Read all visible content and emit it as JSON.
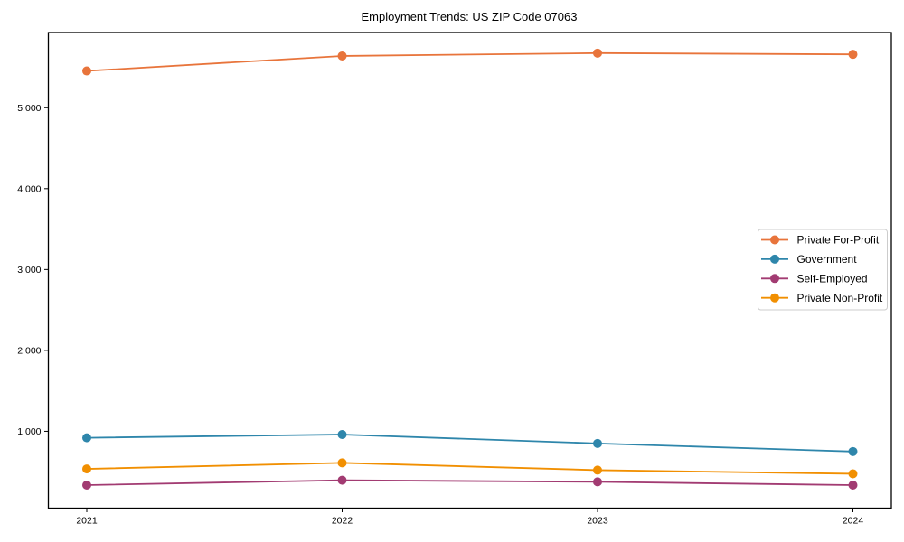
{
  "chart_data": {
    "type": "line",
    "title": "Employment Trends: US ZIP Code 07063",
    "x_categories": [
      "2021",
      "2022",
      "2023",
      "2024"
    ],
    "series": [
      {
        "name": "Private For-Profit",
        "color": "#E8743B",
        "values": [
          5455,
          5640,
          5675,
          5660
        ]
      },
      {
        "name": "Government",
        "color": "#2E86AB",
        "values": [
          920,
          960,
          850,
          750
        ]
      },
      {
        "name": "Self-Employed",
        "color": "#A23B72",
        "values": [
          335,
          395,
          375,
          335
        ]
      },
      {
        "name": "Private Non-Profit",
        "color": "#F18F01",
        "values": [
          535,
          610,
          520,
          475
        ]
      }
    ],
    "ylim": [
      50,
      5930
    ],
    "yticks": [
      1000,
      2000,
      3000,
      4000,
      5000
    ],
    "ytick_labels": [
      "1,000",
      "2,000",
      "3,000",
      "4,000",
      "5,000"
    ],
    "grid": false,
    "legend_position": "center-right",
    "legend_border_color": "#cccccc",
    "legend_background": "#ffffff",
    "axis_color": "#000000"
  }
}
